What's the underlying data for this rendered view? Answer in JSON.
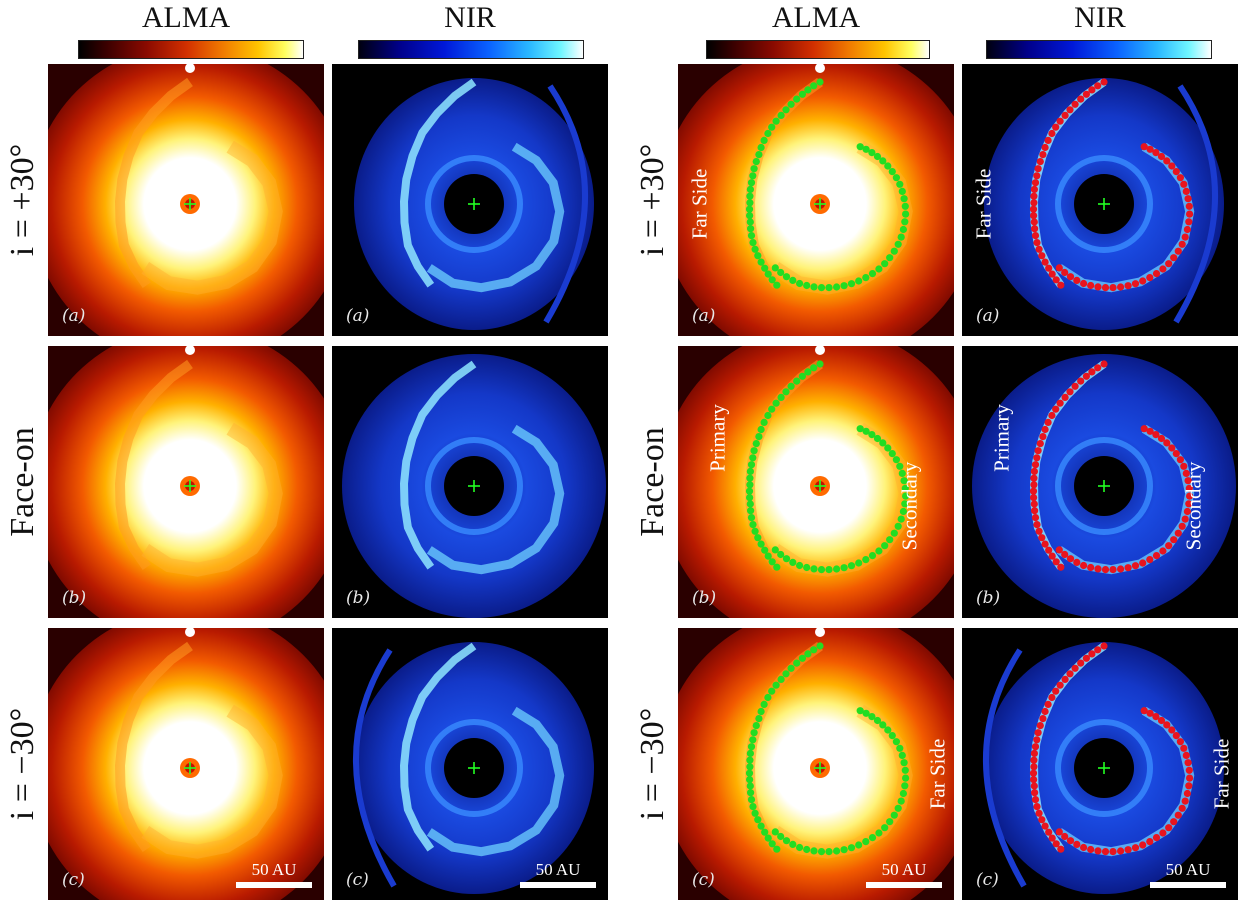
{
  "columns": [
    {
      "title": "ALMA",
      "colorbar": "alma"
    },
    {
      "title": "NIR",
      "colorbar": "nir"
    },
    {
      "title": "ALMA",
      "colorbar": "alma"
    },
    {
      "title": "NIR",
      "colorbar": "nir"
    }
  ],
  "rows": [
    {
      "label": "i = +30°",
      "panel_label": "(a)"
    },
    {
      "label": "Face-on",
      "panel_label": "(b)"
    },
    {
      "label": "i = −30°",
      "panel_label": "(c)"
    }
  ],
  "annotations": {
    "far_side": "Far Side",
    "primary": "Primary",
    "secondary": "Secondary",
    "scale": "50 AU"
  },
  "colors": {
    "alma_marker": "#22dd22",
    "nir_marker": "#e8141e",
    "center_cross": "#22ff22"
  }
}
